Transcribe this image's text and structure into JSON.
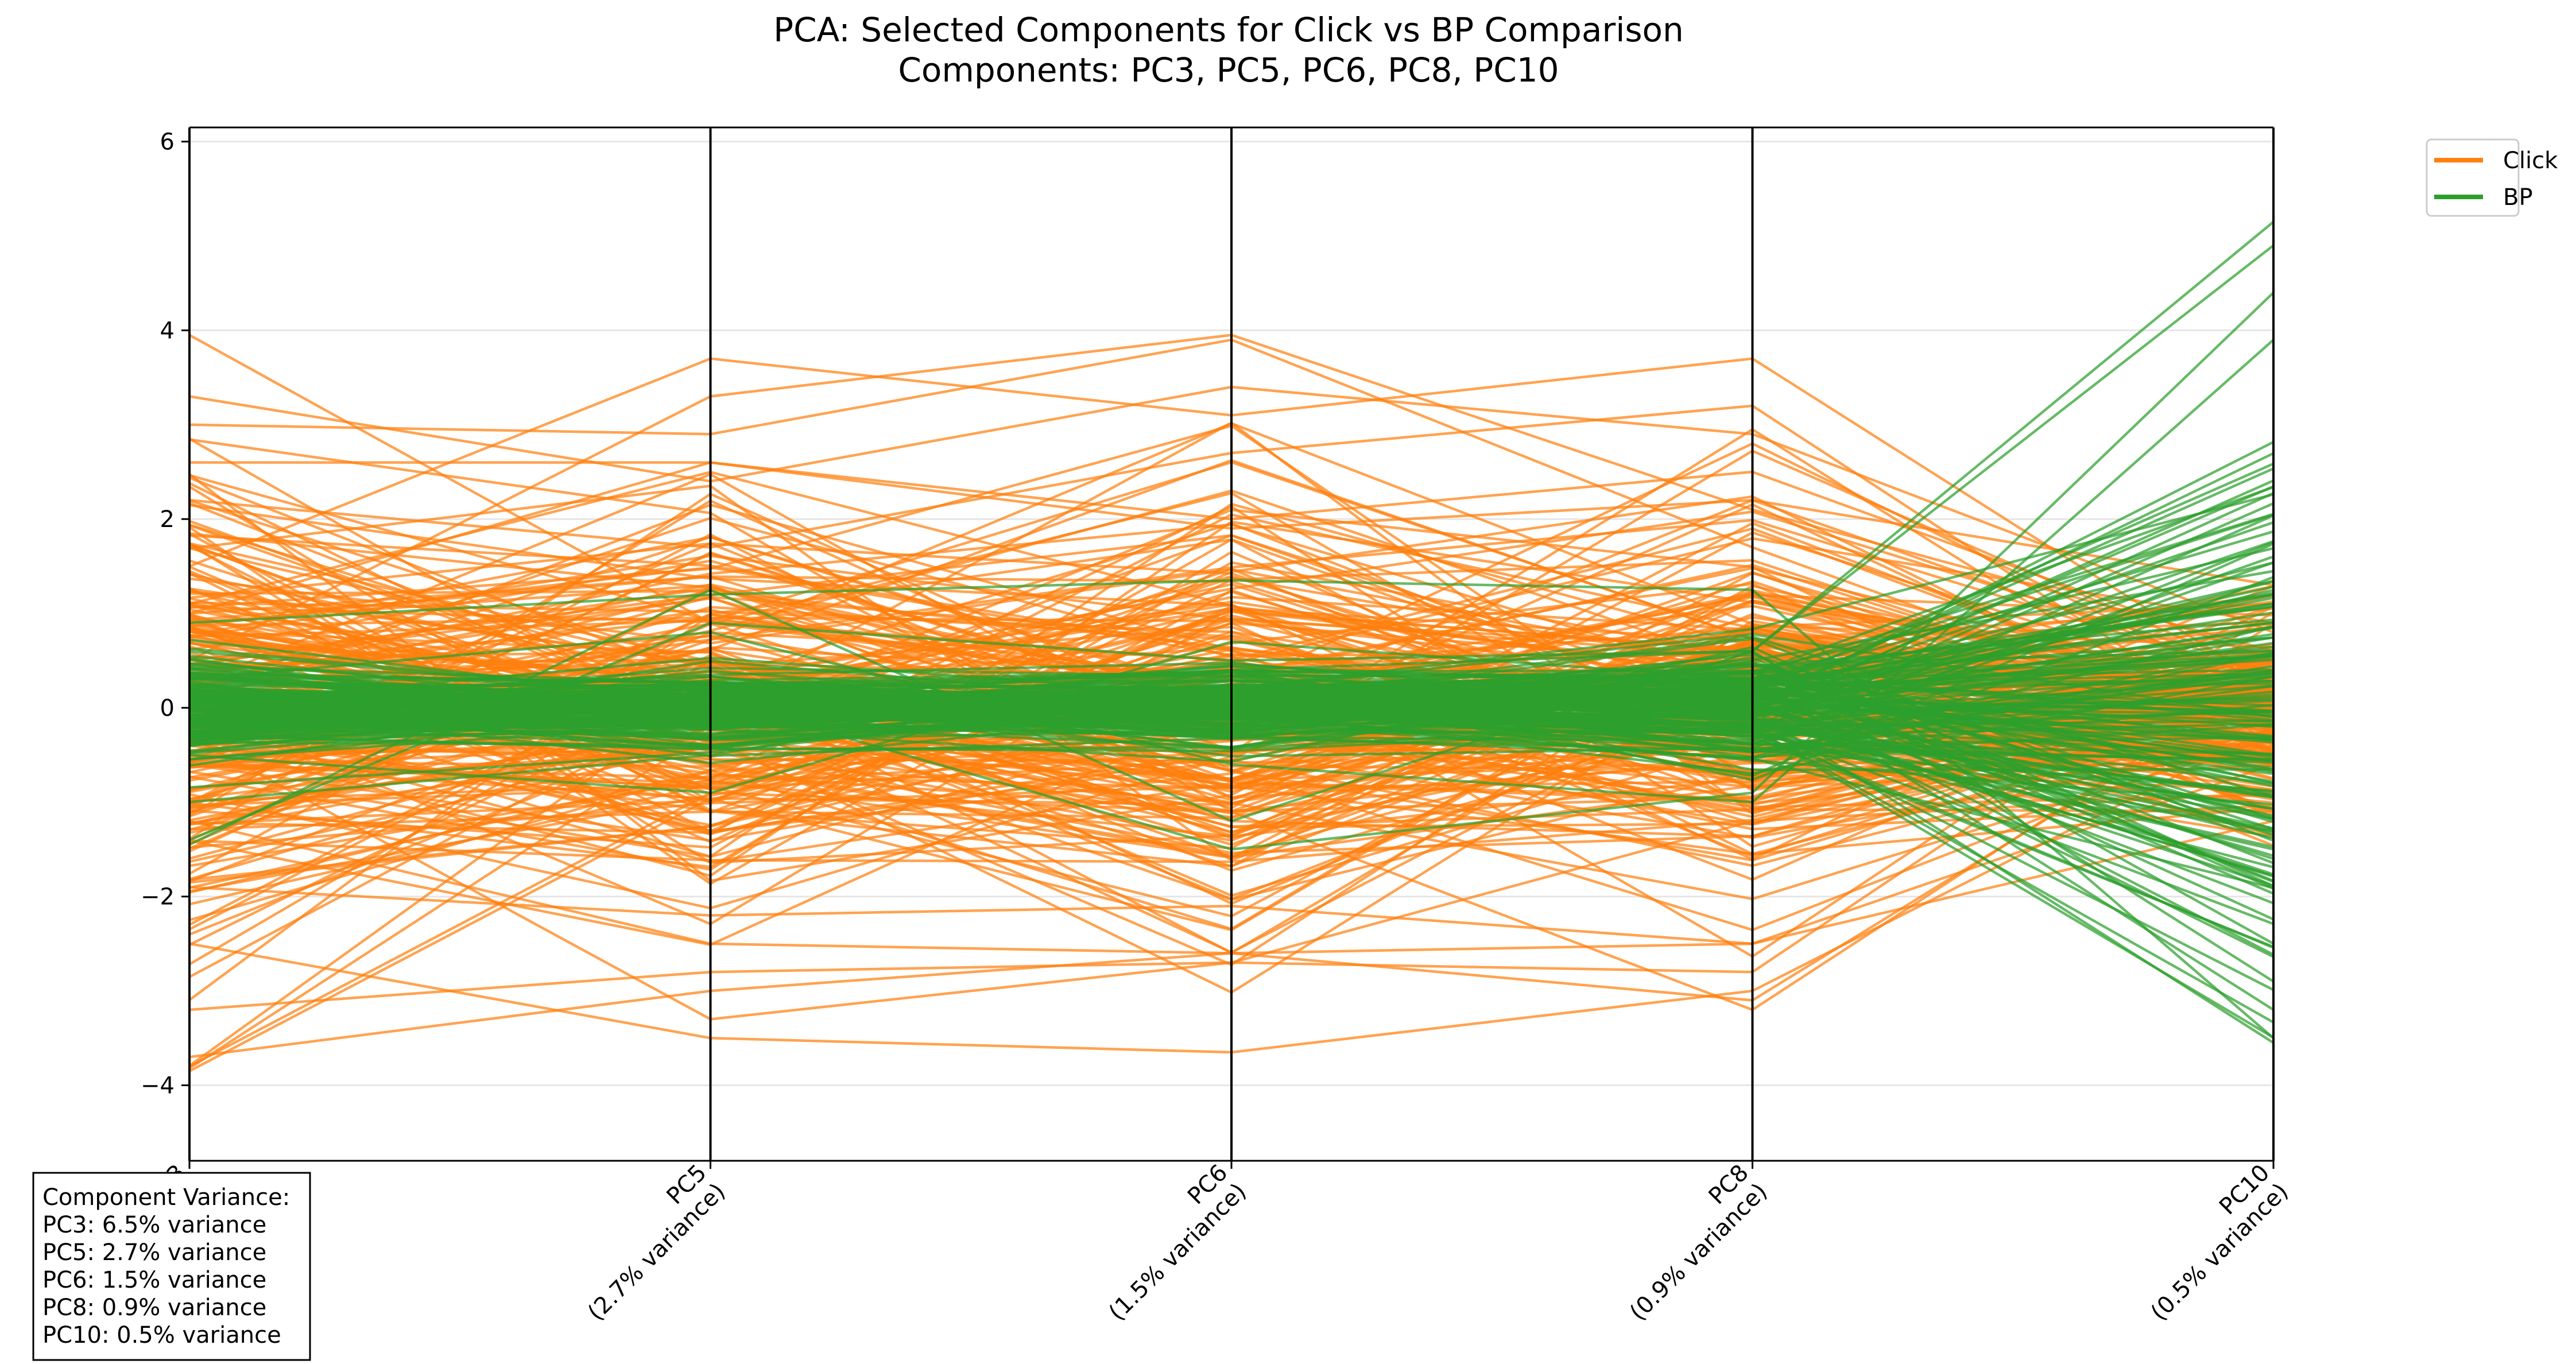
{
  "chart_data": {
    "type": "parallel-coordinates",
    "title": "PCA: Selected Components for Click vs BP Comparison",
    "subtitle": "Components: PC3, PC5, PC6, PC8, PC10",
    "axes": [
      {
        "name": "PC3",
        "label": "PC3\n(6.5% variance)"
      },
      {
        "name": "PC5",
        "label": "PC5\n(2.7% variance)"
      },
      {
        "name": "PC6",
        "label": "PC6\n(1.5% variance)"
      },
      {
        "name": "PC8",
        "label": "PC8\n(0.9% variance)"
      },
      {
        "name": "PC10",
        "label": "PC10\n(0.5% variance)"
      }
    ],
    "ylim": [
      -4.8,
      6.15
    ],
    "yticks": [
      -4,
      -2,
      0,
      2,
      4,
      6
    ],
    "grid": "horizontal",
    "legend": {
      "placement": "upper-right-outside",
      "entries": [
        "Click",
        "BP"
      ]
    },
    "series": [
      {
        "name": "Click",
        "color": "#ff7f0e",
        "value_ranges": {
          "PC3": [
            -3.85,
            4.0
          ],
          "PC5": [
            -3.5,
            3.7
          ],
          "PC6": [
            -3.7,
            3.95
          ],
          "PC8": [
            -3.75,
            3.7
          ],
          "PC10": [
            -1.8,
            1.8
          ]
        },
        "lines": [
          [
            3.95,
            0.9,
            0.2,
            2.8,
            0.1
          ],
          [
            -3.8,
            -0.9,
            -1.1,
            -3.2,
            0.4
          ],
          [
            2.6,
            2.6,
            2.0,
            2.5,
            0.5
          ],
          [
            3.0,
            2.9,
            3.9,
            1.7,
            -0.3
          ],
          [
            -3.7,
            -3.0,
            -2.6,
            -2.5,
            -0.6
          ],
          [
            1.5,
            3.7,
            3.1,
            3.7,
            0.2
          ],
          [
            -2.5,
            -3.5,
            -3.65,
            -3.0,
            -0.2
          ],
          [
            0.5,
            3.3,
            3.95,
            2.1,
            0.6
          ],
          [
            -1.2,
            -2.5,
            -2.6,
            -3.1,
            0.3
          ],
          [
            2.2,
            1.7,
            2.7,
            3.2,
            -0.4
          ],
          [
            -0.3,
            -3.3,
            -2.7,
            -2.8,
            0.9
          ],
          [
            1.0,
            2.6,
            1.9,
            2.2,
            1.3
          ],
          [
            -1.9,
            -2.2,
            -2.1,
            -2.5,
            -1.2
          ],
          [
            3.3,
            2.4,
            3.4,
            2.9,
            0.8
          ],
          [
            -3.2,
            -2.8,
            -2.7,
            -1.2,
            -0.9
          ]
        ],
        "bulk": {
          "count": 220,
          "sd": [
            1.3,
            1.0,
            1.1,
            1.0,
            0.55
          ]
        }
      },
      {
        "name": "BP",
        "color": "#2ca02c",
        "value_ranges": {
          "PC3": [
            -1.5,
            0.9
          ],
          "PC5": [
            -0.9,
            1.25
          ],
          "PC6": [
            -1.5,
            1.4
          ],
          "PC8": [
            -1.3,
            1.3
          ],
          "PC10": [
            -3.55,
            5.2
          ]
        },
        "lines": [
          [
            -1.45,
            1.25,
            -1.2,
            0.6,
            5.15
          ],
          [
            0.9,
            1.2,
            1.35,
            1.25,
            -3.5
          ],
          [
            -1.4,
            0.9,
            0.5,
            0.6,
            4.9
          ],
          [
            0.6,
            0.1,
            -1.5,
            -0.9,
            4.4
          ],
          [
            -0.5,
            -0.9,
            0.7,
            0.3,
            -3.2
          ],
          [
            0.3,
            0.8,
            -0.6,
            -1.0,
            3.9
          ],
          [
            -1.0,
            -0.5,
            0.4,
            0.6,
            -2.9
          ]
        ],
        "bulk": {
          "count": 170,
          "sd": [
            0.28,
            0.22,
            0.22,
            0.3,
            1.4
          ]
        }
      }
    ]
  },
  "legend": {
    "click_label": "Click",
    "bp_label": "BP"
  },
  "info_box": {
    "heading": "Component Variance:",
    "lines": [
      "PC3: 6.5% variance",
      "PC5: 2.7% variance",
      "PC6: 1.5% variance",
      "PC8: 0.9% variance",
      "PC10: 0.5% variance"
    ]
  }
}
